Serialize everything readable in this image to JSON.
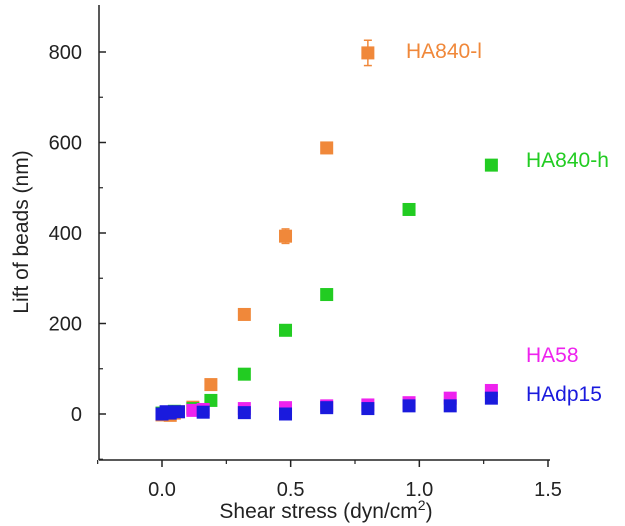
{
  "chart_data": {
    "type": "scatter",
    "xlabel": "Shear stress (dyn/cm",
    "xlabel_sup": "2",
    "xlabel_close": ")",
    "ylabel": "Lift of beads (nm)",
    "xlim": [
      -0.25,
      1.5
    ],
    "ylim": [
      -100,
      850
    ],
    "x_ticks": [
      0.0,
      0.5,
      1.0,
      1.5
    ],
    "x_tick_labels": [
      "0.0",
      "0.5",
      "1.0",
      "1.5"
    ],
    "y_ticks": [
      0,
      200,
      400,
      600,
      800
    ],
    "y_tick_labels": [
      "0",
      "200",
      "400",
      "600",
      "800"
    ],
    "y_minor_ticks": [
      -100,
      100,
      300,
      500,
      700
    ],
    "grid": false,
    "legend": "labels next to series ends",
    "series": [
      {
        "name": "HA840-l",
        "color": "#F0883A",
        "x": [
          0.0,
          0.016,
          0.032,
          0.048,
          0.064,
          0.12,
          0.19,
          0.32,
          0.48,
          0.64,
          0.8
        ],
        "y": [
          -2,
          0,
          -3,
          2,
          5,
          15,
          65,
          220,
          393,
          588,
          798
        ],
        "error": [
          0,
          0,
          0,
          0,
          0,
          0,
          0,
          0,
          16,
          12,
          28
        ]
      },
      {
        "name": "HA840-h",
        "color": "#22CC22",
        "x": [
          0.0,
          0.016,
          0.048,
          0.12,
          0.19,
          0.32,
          0.48,
          0.64,
          0.96,
          1.28
        ],
        "y": [
          2,
          4,
          6,
          12,
          30,
          88,
          185,
          264,
          452,
          550
        ],
        "error": [
          0,
          0,
          0,
          0,
          0,
          0,
          0,
          0,
          0,
          0
        ]
      },
      {
        "name": "HA58",
        "color": "#EE22EE",
        "x": [
          0.12,
          0.16,
          0.32,
          0.48,
          0.64,
          0.8,
          0.96,
          1.12,
          1.28
        ],
        "y": [
          8,
          10,
          12,
          14,
          18,
          20,
          25,
          35,
          52
        ],
        "error": [
          0,
          0,
          0,
          0,
          0,
          0,
          0,
          0,
          0
        ]
      },
      {
        "name": "HAdp15",
        "color": "#1A1ADD",
        "x": [
          0.0,
          0.016,
          0.032,
          0.064,
          0.16,
          0.32,
          0.48,
          0.64,
          0.8,
          0.96,
          1.12,
          1.28
        ],
        "y": [
          0,
          5,
          2,
          5,
          4,
          3,
          0,
          14,
          12,
          18,
          18,
          35
        ],
        "error": [
          0,
          0,
          0,
          0,
          0,
          0,
          0,
          0,
          0,
          0,
          0,
          0
        ]
      }
    ]
  }
}
